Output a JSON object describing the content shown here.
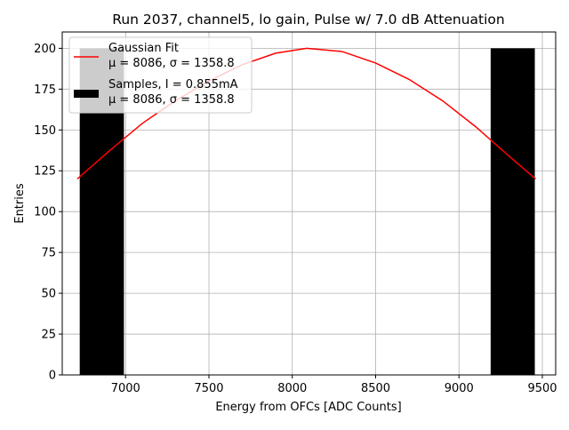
{
  "chart_data": {
    "type": "bar",
    "title": "Run 2037, channel5, lo gain, Pulse w/ 7.0 dB Attenuation",
    "xlabel": "Energy from OFCs [ADC Counts]",
    "ylabel": "Entries",
    "xlim": [
      6620,
      9580
    ],
    "ylim": [
      0,
      210
    ],
    "xticks": [
      7000,
      7500,
      8000,
      8500,
      9000,
      9500
    ],
    "yticks": [
      0,
      25,
      50,
      75,
      100,
      125,
      150,
      175,
      200
    ],
    "grid": true,
    "legend_position": "upper-left",
    "colors": {
      "bars": "#000000",
      "fit_line": "#ff0000",
      "grid": "#b0b0b0"
    },
    "bars": [
      {
        "x0": 6725,
        "x1": 6990,
        "value": 200
      },
      {
        "x0": 9190,
        "x1": 9455,
        "value": 200
      }
    ],
    "fit_curve": {
      "x": [
        6710,
        6900,
        7100,
        7300,
        7500,
        7700,
        7900,
        8086,
        8300,
        8500,
        8700,
        8900,
        9100,
        9300,
        9460
      ],
      "y": [
        120,
        137,
        154,
        168,
        180,
        190,
        197,
        200,
        198,
        191,
        181,
        168,
        152,
        134,
        120
      ]
    },
    "series": [
      {
        "name": "Gaussian Fit",
        "stats": "μ = 8086, σ = 1358.8"
      },
      {
        "name": "Samples, I = 0.855mA",
        "stats": "μ = 8086, σ = 1358.8"
      }
    ]
  }
}
